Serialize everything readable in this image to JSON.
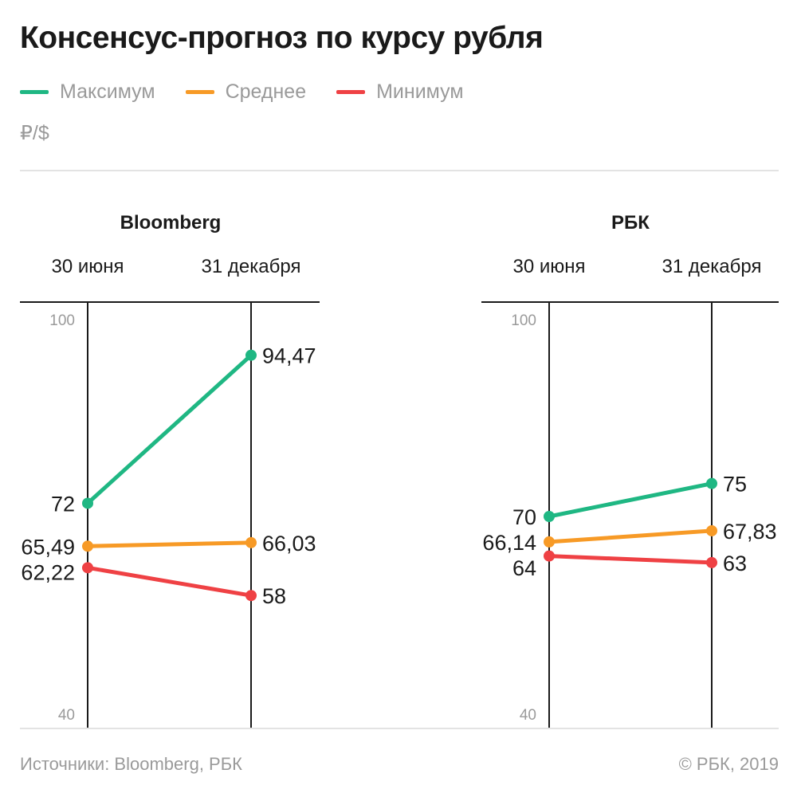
{
  "title": "Консенсус-прогноз по курсу рубля",
  "unit": "₽/$",
  "legend": [
    {
      "label": "Максимум",
      "color": "#1fb783"
    },
    {
      "label": "Среднее",
      "color": "#f79a26"
    },
    {
      "label": "Минимум",
      "color": "#ef4144"
    }
  ],
  "footer": {
    "source": "Источники: Bloomberg, РБК",
    "copyright": "© РБК, 2019"
  },
  "chart_data": [
    {
      "type": "line",
      "title": "Bloomberg",
      "x": [
        "30 июня",
        "31 декабря"
      ],
      "ylim": [
        40,
        100
      ],
      "y_ticks": [
        "100",
        "40"
      ],
      "series": [
        {
          "name": "Максимум",
          "color": "#1fb783",
          "values": [
            72,
            94.47
          ],
          "labels": [
            "72",
            "94,47"
          ]
        },
        {
          "name": "Среднее",
          "color": "#f79a26",
          "values": [
            65.49,
            66.03
          ],
          "labels": [
            "65,49",
            "66,03"
          ]
        },
        {
          "name": "Минимум",
          "color": "#ef4144",
          "values": [
            62.22,
            58
          ],
          "labels": [
            "62,22",
            "58"
          ]
        }
      ]
    },
    {
      "type": "line",
      "title": "РБК",
      "x": [
        "30 июня",
        "31 декабря"
      ],
      "ylim": [
        40,
        100
      ],
      "y_ticks": [
        "100",
        "40"
      ],
      "series": [
        {
          "name": "Максимум",
          "color": "#1fb783",
          "values": [
            70,
            75
          ],
          "labels": [
            "70",
            "75"
          ]
        },
        {
          "name": "Среднее",
          "color": "#f79a26",
          "values": [
            66.14,
            67.83
          ],
          "labels": [
            "66,14",
            "67,83"
          ]
        },
        {
          "name": "Минимум",
          "color": "#ef4144",
          "values": [
            64,
            63
          ],
          "labels": [
            "64",
            "63"
          ]
        }
      ]
    }
  ]
}
